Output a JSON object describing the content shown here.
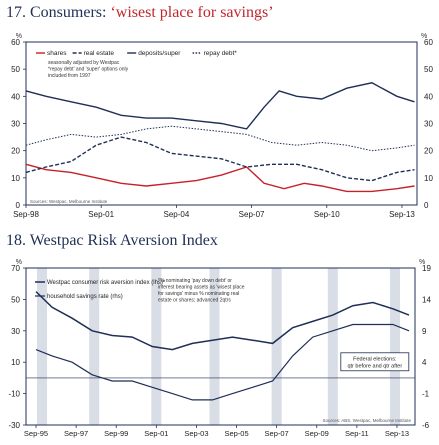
{
  "chart1": {
    "number": "17.",
    "title_main": "Consumers: ",
    "title_highlight": "‘wisest place for savings’",
    "unit_left": "%",
    "unit_right": "%",
    "legend": [
      "shares",
      "real estate",
      "deposits/super",
      "repay debt*"
    ],
    "notes": [
      "seasonally adjusted by Westpac",
      "*repay debt' and 'super' options only",
      "included from 1997"
    ],
    "source": "Sources: Westpac, Melbourne Institute",
    "colors": {
      "shares": "#c8202a",
      "real_estate": "#1f2f55",
      "deposits": "#1f2f55",
      "repay_debt": "#1f2f55"
    }
  },
  "chart2": {
    "number": "18.",
    "title_main": "Westpac Risk Aversion Index",
    "unit_left": "%",
    "unit_right": "%",
    "legend": [
      "Westpac consumer risk aversion index (lhs)*",
      "household savings rate (rhs)"
    ],
    "note": "*% nominating 'pay down debt' or interest bearing assets as 'wisest place for savings' minus % nominating real estate or shares; advanced 2qtrs",
    "callout": "Federal elections: qtr before and qtr after",
    "source": "Sources: ABS, Westpac, Melbourne Institute"
  },
  "chart_data": [
    {
      "type": "line",
      "title": "Consumers: ‘wisest place for savings’",
      "xlabel": "",
      "ylabel": "%",
      "ylim": [
        0,
        60
      ],
      "yticks": [
        0,
        10,
        20,
        30,
        40,
        50,
        60
      ],
      "xticks": [
        "Sep-98",
        "Sep-01",
        "Sep-04",
        "Sep-07",
        "Sep-10",
        "Sep-13"
      ],
      "xrange": [
        1998.7,
        2014.3
      ],
      "legend_position": "top-left",
      "series": [
        {
          "name": "shares",
          "x": [
            1998.7,
            1999.5,
            2000.5,
            2001.5,
            2002.5,
            2003.5,
            2004.5,
            2005.5,
            2006.5,
            2007.5,
            2008.2,
            2009.0,
            2009.8,
            2010.5,
            2011.5,
            2012.5,
            2013.5,
            2014.2
          ],
          "values": [
            15,
            13,
            12,
            10,
            8,
            7,
            8,
            9,
            11,
            14,
            8,
            6,
            8,
            7,
            5,
            5,
            6,
            7
          ]
        },
        {
          "name": "real estate",
          "x": [
            1998.7,
            1999.5,
            2000.5,
            2001.5,
            2002.5,
            2003.5,
            2004.5,
            2005.5,
            2006.5,
            2007.5,
            2008.5,
            2009.5,
            2010.5,
            2011.5,
            2012.5,
            2013.5,
            2014.2
          ],
          "values": [
            12,
            14,
            16,
            22,
            25,
            23,
            19,
            18,
            17,
            14,
            15,
            15,
            13,
            10,
            9,
            12,
            13
          ]
        },
        {
          "name": "deposits/super",
          "x": [
            1998.7,
            1999.5,
            2000.5,
            2001.5,
            2002.5,
            2003.5,
            2004.5,
            2005.5,
            2006.5,
            2007.5,
            2008.2,
            2008.8,
            2009.5,
            2010.5,
            2011.5,
            2012.5,
            2013.5,
            2014.2
          ],
          "values": [
            42,
            40,
            38,
            36,
            33,
            32,
            32,
            31,
            30,
            28,
            36,
            42,
            40,
            39,
            43,
            45,
            40,
            38
          ]
        },
        {
          "name": "repay debt*",
          "x": [
            1998.7,
            1999.5,
            2000.5,
            2001.5,
            2002.5,
            2003.5,
            2004.5,
            2005.5,
            2006.5,
            2007.5,
            2008.5,
            2009.5,
            2010.5,
            2011.5,
            2012.5,
            2013.5,
            2014.2
          ],
          "values": [
            22,
            24,
            26,
            25,
            26,
            28,
            29,
            28,
            27,
            26,
            23,
            22,
            23,
            22,
            20,
            21,
            22
          ]
        }
      ]
    },
    {
      "type": "line",
      "title": "Westpac Risk Aversion Index",
      "xlabel": "",
      "ylabel": "%",
      "ylim_left": [
        -30,
        70
      ],
      "yticks_left": [
        -30,
        -10,
        10,
        30,
        50,
        70
      ],
      "ylim_right": [
        -6,
        19
      ],
      "yticks_right": [
        -6,
        -1,
        4,
        9,
        14,
        19
      ],
      "xticks": [
        "Sep-95",
        "Sep-97",
        "Sep-99",
        "Sep-01",
        "Sep-03",
        "Sep-05",
        "Sep-07",
        "Sep-09",
        "Sep-11",
        "Sep-13"
      ],
      "xrange": [
        1995.2,
        2014.6
      ],
      "legend_position": "top-left",
      "series": [
        {
          "name": "Westpac consumer risk aversion index (lhs)*",
          "axis": "left",
          "x": [
            1995.7,
            1996.5,
            1997.5,
            1998.5,
            1999.5,
            2000.5,
            2001.5,
            2002.5,
            2003.5,
            2004.5,
            2005.5,
            2006.5,
            2007.5,
            2008.5,
            2009.5,
            2010.5,
            2011.5,
            2012.5,
            2013.5,
            2014.3
          ],
          "values": [
            55,
            45,
            38,
            30,
            27,
            26,
            20,
            18,
            22,
            24,
            26,
            24,
            22,
            32,
            36,
            40,
            46,
            48,
            44,
            40
          ]
        },
        {
          "name": "household savings rate (rhs)",
          "axis": "right",
          "x": [
            1995.7,
            1996.5,
            1997.5,
            1998.5,
            1999.5,
            2000.5,
            2001.5,
            2002.5,
            2003.5,
            2004.5,
            2005.5,
            2006.5,
            2007.5,
            2008.5,
            2009.5,
            2010.5,
            2011.5,
            2012.5,
            2013.5,
            2014.3
          ],
          "values": [
            6,
            5,
            4,
            2,
            1,
            1,
            0,
            -1,
            -2,
            -2,
            -1,
            0,
            1,
            5,
            8,
            9,
            10,
            10,
            10,
            9
          ]
        }
      ]
    }
  ]
}
